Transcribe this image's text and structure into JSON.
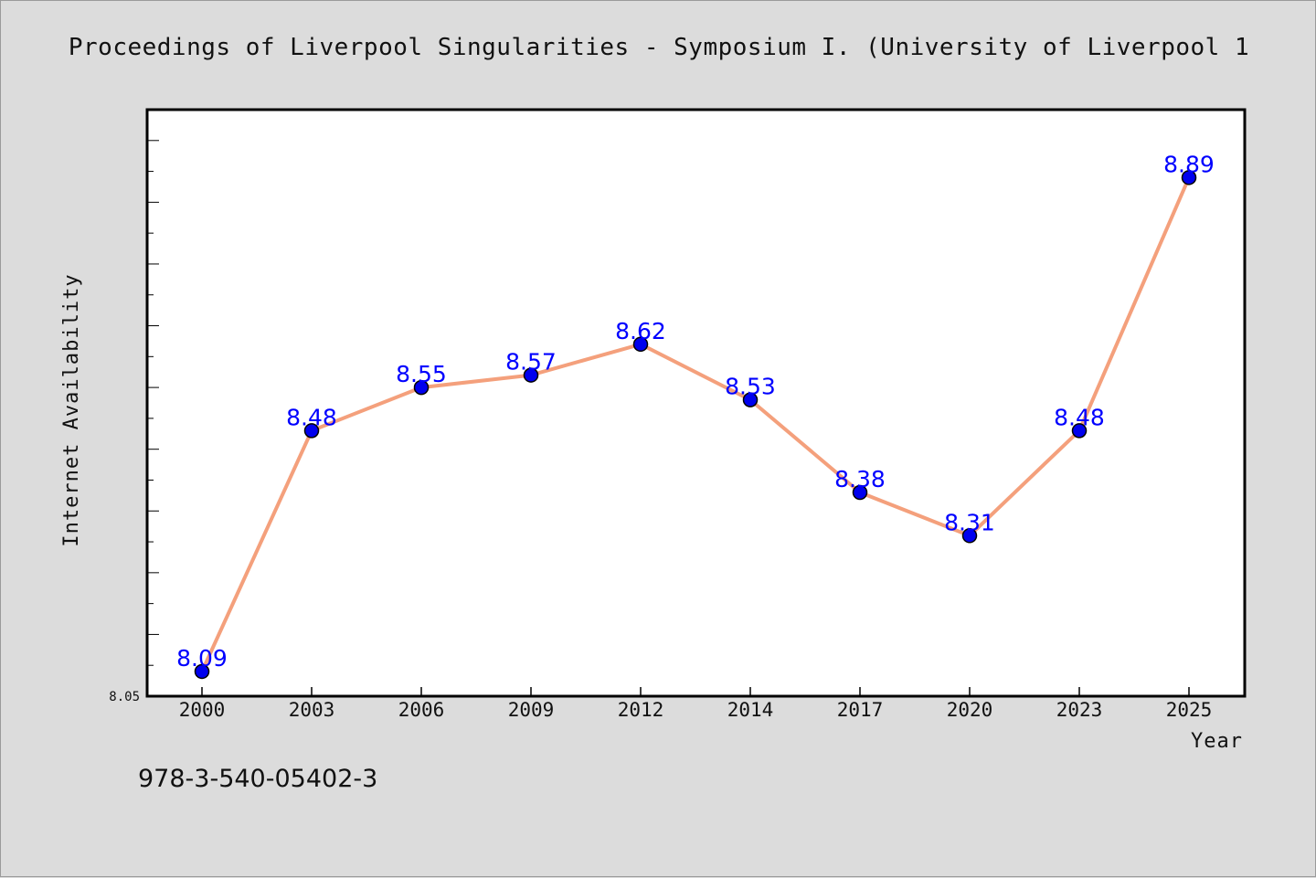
{
  "page": {
    "title": "Proceedings of Liverpool Singularities - Symposium I. (University of Liverpool 1",
    "isbn": "978-3-540-05402-3"
  },
  "colors": {
    "background": "#dcdcdc",
    "plot_background": "#ffffff",
    "line": "#f4a07c",
    "marker": "#0000ee",
    "data_label": "#0000ff"
  },
  "chart_data": {
    "type": "line",
    "title": "Proceedings of Liverpool Singularities - Symposium I. (University of Liverpool 1",
    "xlabel": "Year",
    "ylabel": "Internet Availability",
    "categories": [
      "2000",
      "2003",
      "2006",
      "2009",
      "2012",
      "2014",
      "2017",
      "2020",
      "2023",
      "2025"
    ],
    "series": [
      {
        "values": [
          8.09,
          8.48,
          8.55,
          8.57,
          8.62,
          8.53,
          8.38,
          8.31,
          8.48,
          8.89
        ]
      }
    ],
    "y_tick_labels": [
      "8.05"
    ],
    "ylim": [
      8.05,
      9.0
    ],
    "grid": false,
    "data_labels": true,
    "legend": "none"
  }
}
